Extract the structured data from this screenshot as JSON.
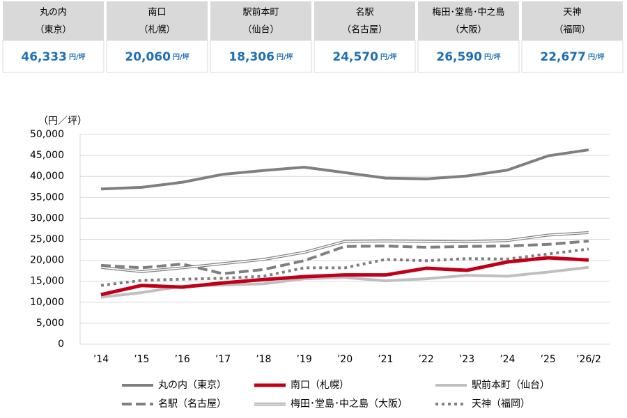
{
  "header": {
    "cells": [
      {
        "name": "丸の内",
        "area": "（東京）",
        "value": "46,333",
        "unit": "円/坪"
      },
      {
        "name": "南口",
        "area": "（札幌）",
        "value": "20,060",
        "unit": "円/坪"
      },
      {
        "name": "駅前本町",
        "area": "（仙台）",
        "value": "18,306",
        "unit": "円/坪"
      },
      {
        "name": "名駅",
        "area": "（名古屋）",
        "value": "24,570",
        "unit": "円/坪"
      },
      {
        "name": "梅田･堂島･中之島",
        "area": "（大阪）",
        "value": "26,590",
        "unit": "円/坪"
      },
      {
        "name": "天神",
        "area": "（福岡）",
        "value": "22,677",
        "unit": "円/坪"
      }
    ]
  },
  "chart_data": {
    "type": "line",
    "y_label": "（円／坪）",
    "categories": [
      "’14",
      "’15",
      "’16",
      "’17",
      "’18",
      "’19",
      "’20",
      "’21",
      "’22",
      "’23",
      "’24",
      "’25",
      "’26/2"
    ],
    "ylim": [
      0,
      50000
    ],
    "yticks": [
      0,
      {
        "value": 5000,
        "label": "5,000"
      },
      {
        "value": 10000,
        "label": "10,000"
      },
      {
        "value": 15000,
        "label": "15,000"
      },
      {
        "value": 20000,
        "label": "20,000"
      },
      {
        "value": 25000,
        "label": "25,000"
      },
      {
        "value": 30000,
        "label": "30,000"
      },
      {
        "value": 35000,
        "label": "35,000"
      },
      {
        "value": 40000,
        "label": "40,000"
      },
      {
        "value": 45000,
        "label": "45,000"
      },
      {
        "value": 50000,
        "label": "50,000"
      }
    ],
    "grid": true,
    "series": [
      {
        "name": "丸の内（東京）",
        "color": "#7f7f7f",
        "style": "solid",
        "values": [
          37000,
          37400,
          38600,
          40500,
          41400,
          42200,
          40900,
          39600,
          39400,
          40100,
          41500,
          44900,
          46333
        ]
      },
      {
        "name": "南口（札幌）",
        "color": "#c00018",
        "style": "solid",
        "values": [
          11800,
          14000,
          13600,
          14600,
          15400,
          16100,
          16500,
          16500,
          18100,
          17600,
          19600,
          20600,
          20060
        ]
      },
      {
        "name": "駅前本町（仙台）",
        "color": "#bfbfbf",
        "style": "solid",
        "values": [
          11200,
          12300,
          13800,
          14100,
          14400,
          15600,
          15900,
          15100,
          15600,
          16400,
          16200,
          17200,
          18306
        ]
      },
      {
        "name": "名駅（名古屋）",
        "color": "#7f7f7f",
        "style": "dashed",
        "values": [
          18800,
          18200,
          19100,
          16800,
          17800,
          19900,
          23300,
          23400,
          23100,
          23300,
          23400,
          23800,
          24570
        ]
      },
      {
        "name": "梅田･堂島･中之島（大阪）",
        "color": "#7f7f7f",
        "style": "double",
        "values": [
          18300,
          17300,
          18200,
          19200,
          20200,
          21900,
          24500,
          24600,
          24500,
          24400,
          24700,
          26000,
          26590
        ]
      },
      {
        "name": "天神（福岡）",
        "color": "#7f7f7f",
        "style": "dotted",
        "values": [
          14000,
          15200,
          15500,
          15700,
          16200,
          18200,
          18200,
          20200,
          19900,
          20400,
          20300,
          21500,
          22677
        ]
      }
    ]
  }
}
